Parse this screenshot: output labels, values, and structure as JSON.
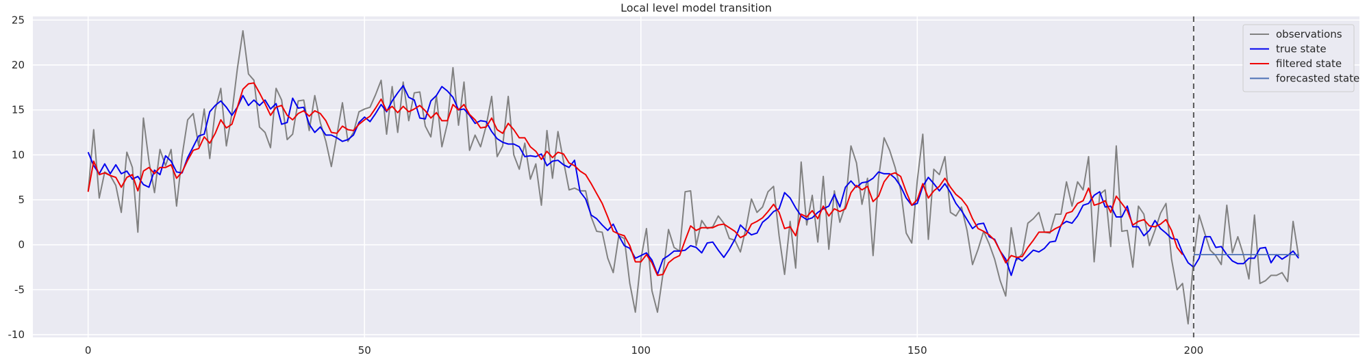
{
  "chart_data": {
    "type": "line",
    "title": "Local level model transition",
    "xlabel": "",
    "ylabel": "",
    "xlim": [
      -10,
      230
    ],
    "ylim": [
      -10.3,
      25.4
    ],
    "x_ticks": [
      0,
      50,
      100,
      150,
      200
    ],
    "y_ticks": [
      -10,
      -5,
      0,
      5,
      10,
      15,
      20,
      25
    ],
    "grid": true,
    "legend_position": "top-right",
    "vline": {
      "x": 200,
      "style": "dashed",
      "color": "#555555"
    },
    "series": [
      {
        "name": "observations",
        "color": "#808080",
        "x_start": 0,
        "values": [
          5.9,
          12.8,
          5.2,
          8.1,
          7.7,
          6.6,
          3.6,
          10.3,
          8.6,
          1.4,
          14.1,
          9.3,
          5.8,
          10.6,
          8.8,
          10.6,
          4.3,
          9.9,
          13.9,
          14.6,
          11.0,
          15.1,
          9.6,
          15.0,
          17.4,
          11.0,
          14.6,
          19.6,
          23.8,
          19.0,
          18.3,
          13.1,
          12.5,
          10.8,
          17.4,
          16.1,
          11.7,
          12.3,
          16.0,
          16.1,
          12.7,
          16.6,
          13.6,
          11.5,
          8.7,
          12.2,
          15.8,
          11.5,
          12.5,
          14.8,
          15.1,
          15.3,
          16.7,
          18.3,
          12.3,
          17.6,
          12.5,
          18.1,
          13.8,
          16.9,
          17.0,
          13.2,
          12.0,
          16.6,
          10.9,
          13.5,
          19.7,
          13.3,
          18.1,
          10.5,
          12.2,
          10.9,
          13.2,
          16.5,
          9.8,
          11.0,
          16.5,
          10.0,
          8.4,
          11.3,
          7.3,
          9.0,
          4.4,
          12.7,
          7.4,
          12.6,
          9.3,
          6.1,
          6.3,
          6.0,
          6.0,
          3.1,
          1.5,
          1.4,
          -1.5,
          -3.1,
          1.0,
          0.7,
          -4.3,
          -7.5,
          -1.6,
          1.8,
          -5.1,
          -7.5,
          -3.2,
          1.7,
          -0.3,
          -0.7,
          5.9,
          6.0,
          -0.1,
          2.7,
          1.8,
          2.0,
          3.2,
          2.4,
          0.7,
          0.5,
          -0.8,
          1.8,
          5.1,
          3.6,
          4.2,
          5.9,
          6.5,
          1.0,
          -3.3,
          2.6,
          -2.6,
          9.2,
          2.2,
          5.5,
          0.3,
          7.6,
          -0.5,
          6.0,
          2.5,
          4.4,
          11.0,
          9.1,
          4.5,
          7.4,
          -1.2,
          7.4,
          11.9,
          10.5,
          8.6,
          6.1,
          1.3,
          0.2,
          7.1,
          12.3,
          0.6,
          8.4,
          7.8,
          9.8,
          3.6,
          3.2,
          4.2,
          1.6,
          -2.2,
          -0.5,
          1.5,
          0.1,
          -1.6,
          -4.0,
          -5.7,
          1.9,
          -1.7,
          -1.0,
          2.4,
          2.9,
          3.6,
          1.4,
          1.3,
          3.4,
          3.4,
          7.0,
          4.3,
          7.0,
          6.1,
          9.8,
          -1.9,
          5.6,
          6.1,
          -0.2,
          11.0,
          1.5,
          1.6,
          -2.5,
          4.3,
          3.4,
          -0.1,
          1.6,
          3.5,
          4.6,
          -1.6,
          -5.0,
          -4.3,
          -8.8,
          -1.6,
          3.3,
          1.3,
          -0.6,
          -1.2,
          -2.2,
          4.4,
          -0.9,
          0.9,
          -1.1,
          -3.8,
          3.3,
          -4.3,
          -4.0,
          -3.4,
          -3.4,
          -3.1,
          -4.1,
          2.6,
          -1.3
        ]
      },
      {
        "name": "true state",
        "color": "#0000ee",
        "x_start": 0,
        "values": [
          10.3,
          8.8,
          7.9,
          9.0,
          7.9,
          8.9,
          7.9,
          8.2,
          7.3,
          7.6,
          6.7,
          6.4,
          8.3,
          7.8,
          9.9,
          9.3,
          8.1,
          8.0,
          9.7,
          10.9,
          12.1,
          12.3,
          14.8,
          15.5,
          16.0,
          15.3,
          14.4,
          15.3,
          16.6,
          15.5,
          16.1,
          15.5,
          16.1,
          15.1,
          15.7,
          13.4,
          13.6,
          16.3,
          15.2,
          15.3,
          13.4,
          12.5,
          13.1,
          12.2,
          12.2,
          11.9,
          11.5,
          11.7,
          12.2,
          13.6,
          14.2,
          13.7,
          14.6,
          15.6,
          14.8,
          16.0,
          16.9,
          17.7,
          16.4,
          16.1,
          14.1,
          14.0,
          16.0,
          16.6,
          17.6,
          17.1,
          16.4,
          15.0,
          15.1,
          14.4,
          13.5,
          13.8,
          13.7,
          12.6,
          11.8,
          11.4,
          11.2,
          11.2,
          10.9,
          9.8,
          9.9,
          9.8,
          10.1,
          8.8,
          9.3,
          9.4,
          8.9,
          8.6,
          9.4,
          5.9,
          5.1,
          3.3,
          2.9,
          2.2,
          1.6,
          2.3,
          1.0,
          -0.1,
          -0.4,
          -1.5,
          -1.2,
          -0.9,
          -1.7,
          -3.3,
          -1.6,
          -1.2,
          -0.7,
          -0.7,
          -0.6,
          -0.1,
          -0.3,
          -0.9,
          0.2,
          0.3,
          -0.6,
          -1.4,
          -0.5,
          0.6,
          2.2,
          1.6,
          1.1,
          1.3,
          2.5,
          3.0,
          3.7,
          4.0,
          5.8,
          5.2,
          4.1,
          3.2,
          2.8,
          3.0,
          3.6,
          4.0,
          4.3,
          5.6,
          4.2,
          6.4,
          7.1,
          6.4,
          6.9,
          7.0,
          7.4,
          8.1,
          7.9,
          7.9,
          7.4,
          6.5,
          5.2,
          4.4,
          4.6,
          6.5,
          7.5,
          6.8,
          6.0,
          6.8,
          5.8,
          4.6,
          3.8,
          2.8,
          1.8,
          2.3,
          2.4,
          0.9,
          0.6,
          -0.7,
          -1.6,
          -3.4,
          -1.4,
          -1.8,
          -1.2,
          -0.6,
          -0.8,
          -0.4,
          0.3,
          0.4,
          2.2,
          2.6,
          2.4,
          3.2,
          4.4,
          4.6,
          5.5,
          5.9,
          4.2,
          4.3,
          3.1,
          3.1,
          4.3,
          2.0,
          2.0,
          1.0,
          1.6,
          2.7,
          1.8,
          1.3,
          0.7,
          0.6,
          -0.9,
          -2.0,
          -2.5,
          -1.5,
          0.9,
          0.9,
          -0.3,
          -0.2,
          -1.1,
          -1.8,
          -2.1,
          -2.1,
          -1.5,
          -1.5,
          -0.4,
          -0.3,
          -2.0,
          -1.1,
          -1.6,
          -1.2,
          -0.7,
          -1.5
        ]
      },
      {
        "name": "filtered state",
        "color": "#ee0000",
        "x_start": 0,
        "values": [
          5.9,
          9.3,
          7.8,
          8.0,
          7.7,
          7.5,
          6.4,
          7.5,
          7.8,
          6.0,
          8.2,
          8.6,
          7.9,
          8.6,
          8.6,
          8.9,
          7.4,
          8.1,
          9.4,
          10.5,
          10.7,
          12.0,
          11.3,
          12.4,
          13.9,
          13.0,
          13.4,
          15.3,
          17.3,
          17.9,
          18.0,
          16.9,
          15.7,
          14.4,
          15.3,
          15.5,
          14.4,
          13.9,
          14.6,
          14.9,
          14.3,
          14.9,
          14.6,
          13.8,
          12.5,
          12.4,
          13.2,
          12.8,
          12.7,
          13.4,
          13.9,
          14.3,
          15.2,
          16.2,
          14.9,
          15.4,
          14.7,
          15.4,
          14.8,
          15.1,
          15.5,
          14.9,
          14.1,
          14.7,
          13.8,
          13.8,
          15.6,
          15.0,
          15.6,
          14.5,
          13.9,
          13.0,
          13.1,
          14.1,
          12.8,
          12.4,
          13.5,
          12.8,
          11.9,
          11.9,
          10.9,
          10.4,
          9.5,
          10.4,
          9.7,
          10.3,
          10.1,
          9.1,
          8.8,
          8.2,
          7.8,
          6.8,
          5.7,
          4.6,
          3.1,
          1.5,
          1.2,
          1.0,
          -0.1,
          -1.9,
          -1.9,
          -1.1,
          -2.0,
          -3.4,
          -3.3,
          -2.0,
          -1.5,
          -1.2,
          0.5,
          2.1,
          1.6,
          1.9,
          1.9,
          1.9,
          2.2,
          2.3,
          1.9,
          1.5,
          0.8,
          1.1,
          2.3,
          2.6,
          3.0,
          3.7,
          4.5,
          3.6,
          1.8,
          2.0,
          1.0,
          3.4,
          3.1,
          3.8,
          2.9,
          4.3,
          3.2,
          4.0,
          3.7,
          4.0,
          5.8,
          6.6,
          6.1,
          6.5,
          4.8,
          5.4,
          7.0,
          7.8,
          8.0,
          7.6,
          5.9,
          4.4,
          5.0,
          6.8,
          5.2,
          6.0,
          6.5,
          7.4,
          6.4,
          5.6,
          5.1,
          4.3,
          2.9,
          1.8,
          1.5,
          1.1,
          0.5,
          -0.7,
          -2.0,
          -1.2,
          -1.4,
          -1.3,
          -0.3,
          0.5,
          1.4,
          1.4,
          1.4,
          1.8,
          2.1,
          3.5,
          3.7,
          4.6,
          4.9,
          6.3,
          4.4,
          4.6,
          4.9,
          3.6,
          5.4,
          4.6,
          3.8,
          2.2,
          2.6,
          2.8,
          2.1,
          2.0,
          2.3,
          2.8,
          1.6,
          -0.3,
          -1.1
        ]
      },
      {
        "name": "forecasted state",
        "color": "#4a6fb5",
        "x_start": 200,
        "values": [
          -1.1,
          -1.1,
          -1.1,
          -1.1,
          -1.1,
          -1.1,
          -1.1,
          -1.1,
          -1.1,
          -1.1,
          -1.1,
          -1.1,
          -1.1,
          -1.1,
          -1.1,
          -1.1,
          -1.1,
          -1.1,
          -1.1,
          -1.1
        ]
      }
    ]
  }
}
